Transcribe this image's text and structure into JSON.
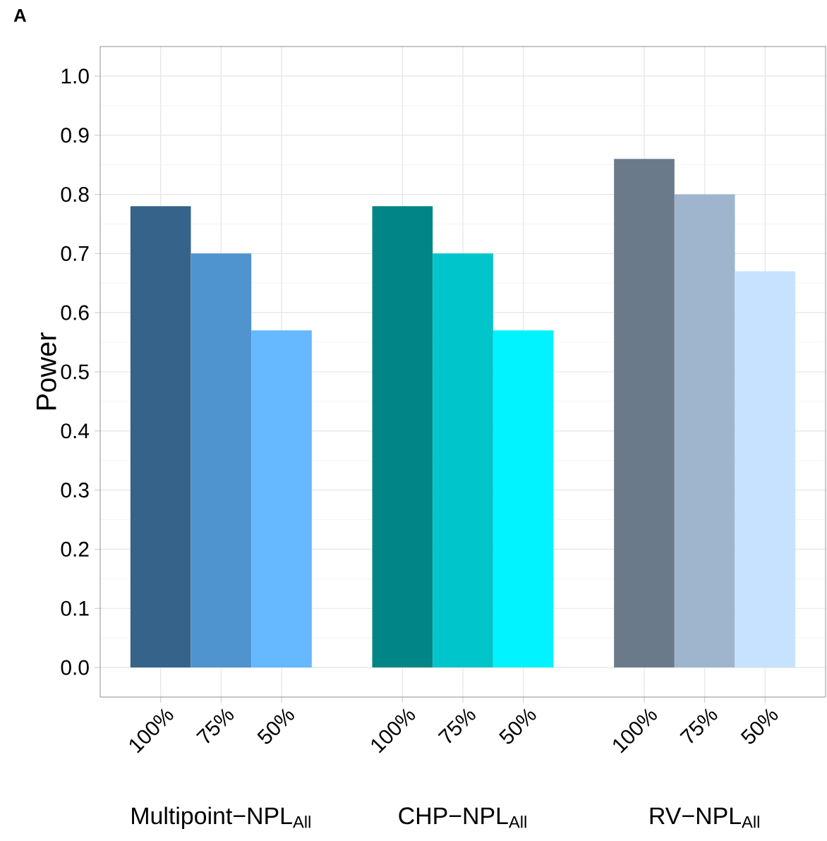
{
  "chart_data": {
    "type": "bar",
    "title": "A",
    "ylabel": "Power",
    "categories": [
      "100%",
      "75%",
      "50%",
      null,
      "100%",
      "75%",
      "50%",
      null,
      "100%",
      "75%",
      "50%"
    ],
    "values": [
      0.78,
      0.7,
      0.57,
      null,
      0.78,
      0.7,
      0.57,
      null,
      0.86,
      0.8,
      0.67
    ],
    "colors": [
      "#35638a",
      "#4f93cf",
      "#66b8ff",
      null,
      "#028587",
      "#00c5cb",
      "#00f3ff",
      null,
      "#6a7a8b",
      "#9fb5ce",
      "#c6e2ff"
    ],
    "annotations": [
      "Multipoint−NPL$_{All}$",
      "CHP−NPL$_{All}$",
      "RV−NPL$_{All}$"
    ],
    "ylim": [
      -0.05,
      1.05
    ],
    "yticks": [
      {
        "value": 0,
        "label": "0.0"
      },
      0.1,
      0.2,
      0.3,
      0.4,
      0.5,
      0.6,
      0.7,
      0.8,
      0.9,
      {
        "value": 1.0,
        "label": "1.0"
      }
    ],
    "grid": true
  }
}
